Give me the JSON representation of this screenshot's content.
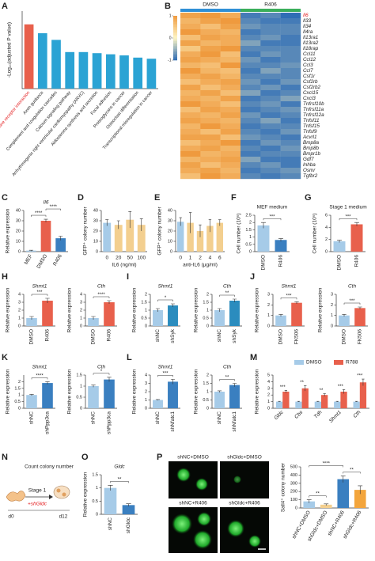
{
  "chart_data": [
    {
      "type": "bar",
      "panel": "A",
      "ylabel": "-Log₁₀(adjusted P value)",
      "categories": [
        "Cytokine-cytokine receptor interaction",
        "Axon guidance",
        "Complement and coagulation cascades",
        "Calcium signaling pathway",
        "Arrhythmogenic right ventricular cardiomyopathy (ARVC)",
        "Aldosterone synthesis and secretion",
        "Focal adhesion",
        "Proteoglycans in cancer",
        "Osteoclast differentiation",
        "Transcriptional misregulation in cancer"
      ],
      "values": [
        5.8,
        5.0,
        4.4,
        3.3,
        3.3,
        3.2,
        3.1,
        3.0,
        2.8,
        2.7
      ],
      "colors": [
        "#e8604c",
        "#2ba3d4",
        "#2ba3d4",
        "#2ba3d4",
        "#2ba3d4",
        "#2ba3d4",
        "#2ba3d4",
        "#2ba3d4",
        "#2ba3d4",
        "#2ba3d4"
      ],
      "label_highlight": {
        "index": 0,
        "color": "#e31a1c"
      },
      "ylim": [
        0,
        7
      ]
    },
    {
      "type": "heatmap",
      "panel": "B",
      "groups": [
        {
          "name": "DMSO",
          "color": "#2f8fd6"
        },
        {
          "name": "R406",
          "color": "#3aae5a"
        }
      ],
      "rows": [
        "Il6",
        "Il33",
        "Il34",
        "Il4ra",
        "Il13ra1",
        "Il13ra2",
        "Il18rap",
        "Ccl11",
        "Ccl12",
        "Ccl3",
        "Ccl7",
        "Csf1r",
        "Csf2rb",
        "Csf2rb2",
        "Cxcl15",
        "Cxcl3",
        "Tnfrsf10b",
        "Tnfrsf11a",
        "Tnfrsf12a",
        "Tnfsf11",
        "Tnfsf15",
        "Tnfsf9",
        "Acvrl1",
        "Bmp8a",
        "Bmp8b",
        "Bmpr1b",
        "Gdf7",
        "Inhba",
        "Osmr",
        "Tgfbr2"
      ],
      "values": [
        [
          0.9,
          1.0,
          0.8,
          -0.9,
          -0.8,
          -1.0
        ],
        [
          0.7,
          0.9,
          1.0,
          -0.8,
          -0.9,
          -0.9
        ],
        [
          0.8,
          0.6,
          0.9,
          -0.7,
          -0.8,
          -0.8
        ],
        [
          1.0,
          0.8,
          0.7,
          -0.9,
          -0.8,
          -0.8
        ],
        [
          0.6,
          0.9,
          0.8,
          -0.8,
          -0.7,
          -0.9
        ],
        [
          0.9,
          0.7,
          0.8,
          -0.6,
          -0.9,
          -0.9
        ],
        [
          0.5,
          0.9,
          1.0,
          -0.8,
          -0.8,
          -0.8
        ],
        [
          0.8,
          1.0,
          0.6,
          -0.9,
          -0.7,
          -0.8
        ],
        [
          0.9,
          0.8,
          0.7,
          -0.7,
          -0.9,
          -0.8
        ],
        [
          0.7,
          0.6,
          1.0,
          -0.8,
          -0.8,
          -0.7
        ],
        [
          1.0,
          0.7,
          0.6,
          -0.9,
          -0.6,
          -0.8
        ],
        [
          0.8,
          0.9,
          0.7,
          -0.8,
          -0.8,
          -0.8
        ],
        [
          0.6,
          0.8,
          0.9,
          -0.7,
          -0.9,
          -0.7
        ],
        [
          0.9,
          0.6,
          0.8,
          -0.8,
          -0.7,
          -0.9
        ],
        [
          0.7,
          0.9,
          0.6,
          -0.6,
          -0.9,
          -0.8
        ],
        [
          0.8,
          0.7,
          0.9,
          -0.9,
          -0.8,
          -0.6
        ],
        [
          1.0,
          0.8,
          0.6,
          -0.8,
          -0.7,
          -0.9
        ],
        [
          0.6,
          0.9,
          0.8,
          -0.9,
          -0.8,
          -0.7
        ],
        [
          0.8,
          0.7,
          0.9,
          -0.7,
          -0.9,
          -0.8
        ],
        [
          0.9,
          0.8,
          0.7,
          -0.8,
          -0.6,
          -0.9
        ],
        [
          0.7,
          1.0,
          0.8,
          -0.9,
          -0.8,
          -0.8
        ],
        [
          0.8,
          0.6,
          0.9,
          -0.8,
          -0.9,
          -0.7
        ],
        [
          0.9,
          0.9,
          0.6,
          -0.7,
          -0.8,
          -0.9
        ],
        [
          0.6,
          0.8,
          1.0,
          -0.9,
          -0.7,
          -0.8
        ],
        [
          0.8,
          0.9,
          0.7,
          -0.8,
          -0.9,
          -0.7
        ],
        [
          1.0,
          0.7,
          0.8,
          -0.9,
          -0.8,
          -0.8
        ],
        [
          0.7,
          0.8,
          0.9,
          -0.6,
          -0.9,
          -0.9
        ],
        [
          0.9,
          0.6,
          0.8,
          -0.8,
          -0.7,
          -0.9
        ],
        [
          0.8,
          0.9,
          0.7,
          -0.9,
          -0.8,
          -0.7
        ],
        [
          0.6,
          1.0,
          0.8,
          -0.8,
          -0.9,
          -0.8
        ]
      ],
      "zlim": [
        -1,
        1
      ],
      "zticks": [
        1,
        0,
        -1
      ],
      "colorscale": [
        "#2f6db5",
        "#fdf5c4",
        "#ef9a3e"
      ],
      "label_highlight": {
        "index": 0,
        "color": "#e31a1c"
      }
    },
    {
      "type": "bar",
      "panel": "C",
      "title": "Il6",
      "ylabel": "Relative expression",
      "categories": [
        "MEF",
        "DMSO",
        "R406"
      ],
      "values": [
        1,
        30,
        13
      ],
      "errors": [
        0.4,
        1.5,
        2
      ],
      "colors": [
        "#a6cbe8",
        "#e8604c",
        "#3a7fc0"
      ],
      "ylim": [
        0,
        40
      ],
      "yticks": [
        0,
        10,
        20,
        30,
        40
      ],
      "significance": [
        {
          "text": "****",
          "pair": [
            0,
            1
          ]
        },
        {
          "text": "****",
          "pair": [
            1,
            2
          ]
        }
      ]
    },
    {
      "type": "bar",
      "panel": "D",
      "ylabel": "GFP⁺ colony number",
      "xlabel": "IL6 (ng/ml)",
      "categories": [
        "0",
        "20",
        "50",
        "100"
      ],
      "values": [
        28,
        26,
        31,
        26
      ],
      "errors": [
        3,
        4,
        8,
        6
      ],
      "colors": [
        "#a6cbe8",
        "#f3cf8f",
        "#f3cf8f",
        "#f3cf8f"
      ],
      "ylim": [
        0,
        40
      ],
      "yticks": [
        0,
        10,
        20,
        30,
        40
      ]
    },
    {
      "type": "bar",
      "panel": "E",
      "ylabel": "GFP⁺ colony number",
      "xlabel": "anti-IL6 (μg/ml)",
      "categories": [
        "0",
        "1",
        "2",
        "4",
        "6"
      ],
      "values": [
        29,
        28,
        20,
        25,
        28
      ],
      "errors": [
        4,
        10,
        6,
        6,
        3
      ],
      "colors": [
        "#a6cbe8",
        "#f3cf8f",
        "#f3cf8f",
        "#f3cf8f",
        "#f3cf8f"
      ],
      "ylim": [
        0,
        40
      ],
      "yticks": [
        0,
        10,
        20,
        30,
        40
      ]
    },
    {
      "type": "bar",
      "panel": "F",
      "title": "MEF medium",
      "ylabel": "Cell number (10⁵)",
      "categories": [
        "DMSO",
        "R406"
      ],
      "values": [
        1.8,
        0.8
      ],
      "errors": [
        0.2,
        0.1
      ],
      "colors": [
        "#a6cbe8",
        "#3a7fc0"
      ],
      "ylim": [
        0,
        2.5
      ],
      "yticks": [
        0,
        0.5,
        1,
        1.5,
        2,
        2.5
      ],
      "significance": [
        {
          "text": "***",
          "pair": [
            0,
            1
          ]
        }
      ]
    },
    {
      "type": "bar",
      "panel": "G",
      "title": "Stage 1 medium",
      "ylabel": "Cell number (10⁵)",
      "categories": [
        "DMSO",
        "R406"
      ],
      "values": [
        1.7,
        4.5
      ],
      "errors": [
        0.2,
        0.3
      ],
      "colors": [
        "#a6cbe8",
        "#e8604c"
      ],
      "ylim": [
        0,
        6
      ],
      "yticks": [
        0,
        2,
        4,
        6
      ],
      "significance": [
        {
          "text": "***",
          "pair": [
            0,
            1
          ]
        }
      ]
    },
    {
      "type": "bar",
      "panel": "H",
      "title": "Shmt1",
      "ylabel": "Relative expression",
      "categories": [
        "DMSO",
        "R406"
      ],
      "values": [
        1,
        3.2
      ],
      "errors": [
        0.2,
        0.3
      ],
      "colors": [
        "#a6cbe8",
        "#e8604c"
      ],
      "ylim": [
        0,
        4
      ],
      "yticks": [
        0,
        1,
        2,
        3,
        4
      ],
      "significance": [
        {
          "text": "***",
          "pair": [
            0,
            1
          ]
        }
      ]
    },
    {
      "type": "bar",
      "title": "Cth",
      "ylabel": "Relative expression",
      "categories": [
        "DMSO",
        "R406"
      ],
      "values": [
        1,
        3.0
      ],
      "errors": [
        0.2,
        0.2
      ],
      "colors": [
        "#a6cbe8",
        "#e8604c"
      ],
      "ylim": [
        0,
        4
      ],
      "yticks": [
        0,
        1,
        2,
        3,
        4
      ],
      "significance": [
        {
          "text": "****",
          "pair": [
            0,
            1
          ]
        }
      ]
    },
    {
      "type": "bar",
      "panel": "I",
      "title": "Shmt1",
      "ylabel": "Relative expression",
      "categories": [
        "shNC",
        "shSyk"
      ],
      "values": [
        1,
        1.3
      ],
      "errors": [
        0.1,
        0.1
      ],
      "colors": [
        "#a6cbe8",
        "#2b8cbe"
      ],
      "ylim": [
        0,
        2
      ],
      "yticks": [
        0,
        0.5,
        1,
        1.5,
        2
      ],
      "significance": [
        {
          "text": "*",
          "pair": [
            0,
            1
          ]
        }
      ]
    },
    {
      "type": "bar",
      "title": "Cth",
      "ylabel": "Relative expression",
      "categories": [
        "shNC",
        "shSyk"
      ],
      "values": [
        1,
        1.6
      ],
      "errors": [
        0.1,
        0.1
      ],
      "colors": [
        "#a6cbe8",
        "#2b8cbe"
      ],
      "ylim": [
        0,
        2
      ],
      "yticks": [
        0,
        0.5,
        1,
        1.5,
        2
      ],
      "significance": [
        {
          "text": "**",
          "pair": [
            0,
            1
          ]
        }
      ]
    },
    {
      "type": "bar",
      "panel": "J",
      "title": "Shmt1",
      "ylabel": "Relative expression",
      "categories": [
        "DMSO",
        "FK506"
      ],
      "values": [
        1,
        2.2
      ],
      "errors": [
        0.1,
        0.1
      ],
      "colors": [
        "#a6cbe8",
        "#e8604c"
      ],
      "ylim": [
        0,
        3
      ],
      "yticks": [
        0,
        1,
        2,
        3
      ],
      "significance": [
        {
          "text": "***",
          "pair": [
            0,
            1
          ]
        }
      ]
    },
    {
      "type": "bar",
      "title": "Cth",
      "ylabel": "Relative expression",
      "categories": [
        "DMSO",
        "FK506"
      ],
      "values": [
        1,
        1.7
      ],
      "errors": [
        0.1,
        0.1
      ],
      "colors": [
        "#a6cbe8",
        "#e8604c"
      ],
      "ylim": [
        0,
        3
      ],
      "yticks": [
        0,
        1,
        2,
        3
      ],
      "significance": [
        {
          "text": "***",
          "pair": [
            0,
            1
          ]
        }
      ]
    },
    {
      "type": "bar",
      "panel": "K",
      "title": "Shmt1",
      "ylabel": "Relative expression",
      "categories": [
        "shNC",
        "shPpp3ca"
      ],
      "values": [
        1,
        1.9
      ],
      "errors": [
        0.05,
        0.1
      ],
      "colors": [
        "#a6cbe8",
        "#3a7fc0"
      ],
      "ylim": [
        0,
        2.5
      ],
      "yticks": [
        0,
        0.5,
        1,
        1.5,
        2
      ],
      "significance": [
        {
          "text": "****",
          "pair": [
            0,
            1
          ]
        }
      ]
    },
    {
      "type": "bar",
      "title": "Cth",
      "ylabel": "Relative expression",
      "categories": [
        "shNC",
        "shPpp3ca"
      ],
      "values": [
        1,
        1.3
      ],
      "errors": [
        0.05,
        0.1
      ],
      "colors": [
        "#a6cbe8",
        "#3a7fc0"
      ],
      "ylim": [
        0,
        1.5
      ],
      "yticks": [
        0,
        0.5,
        1,
        1.5
      ],
      "significance": [
        {
          "text": "*",
          "pair": [
            0,
            1
          ]
        }
      ]
    },
    {
      "type": "bar",
      "panel": "L",
      "title": "Shmt1",
      "ylabel": "Relative expression",
      "categories": [
        "shNC",
        "shNfatc1"
      ],
      "values": [
        1,
        3.2
      ],
      "errors": [
        0.05,
        0.3
      ],
      "colors": [
        "#a6cbe8",
        "#3a7fc0"
      ],
      "ylim": [
        0,
        4
      ],
      "yticks": [
        0,
        1,
        2,
        3,
        4
      ],
      "significance": [
        {
          "text": "***",
          "pair": [
            0,
            1
          ]
        }
      ]
    },
    {
      "type": "bar",
      "title": "Cth",
      "ylabel": "Relative expression",
      "categories": [
        "shNC",
        "shNfatc1"
      ],
      "values": [
        1,
        1.4
      ],
      "errors": [
        0.05,
        0.1
      ],
      "colors": [
        "#a6cbe8",
        "#3a7fc0"
      ],
      "ylim": [
        0,
        2
      ],
      "yticks": [
        0,
        0.5,
        1,
        1.5,
        2
      ],
      "significance": [
        {
          "text": "**",
          "pair": [
            0,
            1
          ]
        }
      ]
    },
    {
      "type": "bar",
      "panel": "M",
      "ylabel": "Relative expression",
      "categories": [
        "Gldc",
        "Cbs",
        "Tdh",
        "Shmt1",
        "Cth"
      ],
      "series": [
        {
          "name": "DMSO",
          "color": "#a6cbe8",
          "values": [
            1,
            1,
            1,
            1,
            1
          ],
          "errors": [
            0.05,
            0.05,
            0.05,
            0.05,
            0.05
          ]
        },
        {
          "name": "R788",
          "color": "#e8604c",
          "values": [
            2.5,
            3.0,
            2.0,
            2.5,
            3.9
          ],
          "errors": [
            0.2,
            0.4,
            0.2,
            0.3,
            0.5
          ]
        }
      ],
      "ylim": [
        0,
        5
      ],
      "yticks": [
        0,
        1,
        2,
        3,
        4,
        5
      ],
      "significance": [
        {
          "text": "***",
          "category": 0
        },
        {
          "text": "**",
          "category": 1
        },
        {
          "text": "**",
          "category": 2
        },
        {
          "text": "***",
          "category": 3
        },
        {
          "text": "***",
          "category": 4
        }
      ]
    },
    {
      "type": "bar",
      "panel": "O",
      "title": "Gldc",
      "ylabel": "Relative expression",
      "categories": [
        "shNC",
        "shGldc"
      ],
      "values": [
        1,
        0.35
      ],
      "errors": [
        0.1,
        0.05
      ],
      "colors": [
        "#a6cbe8",
        "#3a7fc0"
      ],
      "ylim": [
        0,
        1.5
      ],
      "yticks": [
        0,
        0.5,
        1,
        1.5
      ],
      "significance": [
        {
          "text": "**",
          "pair": [
            0,
            1
          ]
        }
      ]
    },
    {
      "type": "bar",
      "ylabel": "Sall4⁺ colony number",
      "categories": [
        "shNC+DMSO",
        "shGldc+DMSO",
        "shNC+R406",
        "shGldc+R406"
      ],
      "values": [
        80,
        40,
        350,
        220
      ],
      "errors": [
        20,
        10,
        40,
        50
      ],
      "colors": [
        "#a6cbe8",
        "#f3cf8f",
        "#3a7fc0",
        "#f3a53c"
      ],
      "ylim": [
        0,
        500
      ],
      "yticks": [
        0,
        100,
        200,
        300,
        400,
        500
      ],
      "significance": [
        {
          "text": "**",
          "pair": [
            0,
            1
          ]
        },
        {
          "text": "**",
          "pair": [
            2,
            3
          ]
        },
        {
          "text": "****",
          "pair": [
            0,
            2
          ]
        }
      ]
    }
  ],
  "diagram": {
    "panel": "N",
    "title": "Count colony number",
    "step": "Stage 1",
    "treatment": "+shGldc",
    "start": "d0",
    "end": "d12"
  },
  "images": {
    "panel": "P",
    "labels": [
      "shNC+DMSO",
      "shGldc+DMSO",
      "shNC+R406",
      "shGldc+R406"
    ]
  }
}
